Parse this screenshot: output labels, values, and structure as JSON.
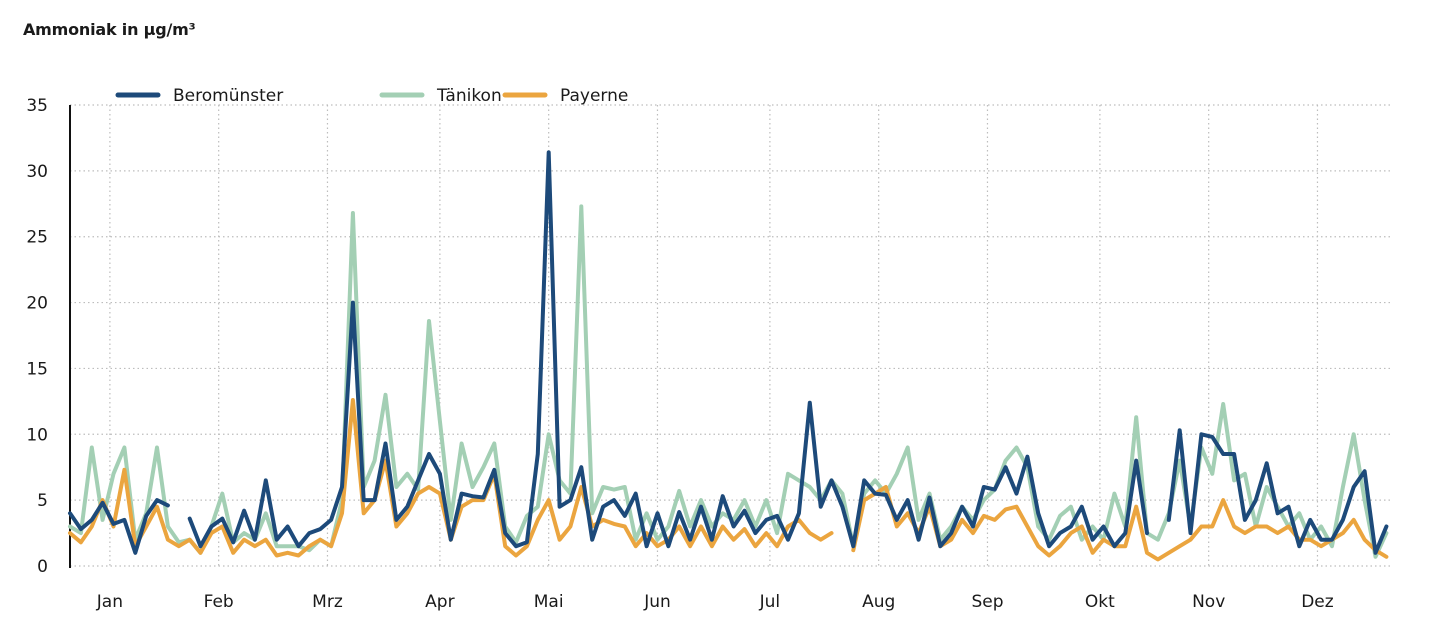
{
  "chart_data": {
    "type": "line",
    "title": "Ammoniak in µg/m³",
    "xlabel": "",
    "ylabel": "",
    "ylim": [
      0,
      35
    ],
    "yticks": [
      0,
      5,
      10,
      15,
      20,
      25,
      30,
      35
    ],
    "xlim": [
      1,
      365
    ],
    "x_unit": "day of year",
    "xticks": [
      {
        "day": 12,
        "label": "Jan"
      },
      {
        "day": 42,
        "label": "Feb"
      },
      {
        "day": 72,
        "label": "Mrz"
      },
      {
        "day": 103,
        "label": "Apr"
      },
      {
        "day": 133,
        "label": "Mai"
      },
      {
        "day": 163,
        "label": "Jun"
      },
      {
        "day": 194,
        "label": "Jul"
      },
      {
        "day": 224,
        "label": "Aug"
      },
      {
        "day": 254,
        "label": "Sep"
      },
      {
        "day": 285,
        "label": "Okt"
      },
      {
        "day": 315,
        "label": "Nov"
      },
      {
        "day": 345,
        "label": "Dez"
      }
    ],
    "grid": true,
    "legend_position": "top-left",
    "x_step_days": 3,
    "series": [
      {
        "name": "Beromünster",
        "color": "#1d4a7a",
        "values": [
          4,
          2.8,
          3.5,
          4.8,
          3.2,
          3.5,
          1,
          3.8,
          5,
          4.6,
          null,
          3.6,
          1.5,
          3,
          3.6,
          1.8,
          4.2,
          2,
          6.5,
          2,
          3,
          1.5,
          2.5,
          2.8,
          3.5,
          6,
          20,
          5,
          5,
          9.3,
          3.5,
          4.5,
          6.5,
          8.5,
          7,
          2,
          5.5,
          5.3,
          5.2,
          7.3,
          2.5,
          1.5,
          1.8,
          8.5,
          31.4,
          4.5,
          5,
          7.5,
          2,
          4.5,
          5,
          3.8,
          5.5,
          1.5,
          4,
          1.5,
          4.1,
          2,
          4.5,
          2,
          5.3,
          3,
          4.2,
          2.5,
          3.5,
          3.8,
          2,
          4,
          12.4,
          4.5,
          6.5,
          4.5,
          1.5,
          6.5,
          5.5,
          5.4,
          3.5,
          5,
          2,
          5.2,
          1.5,
          2.5,
          4.5,
          3,
          6,
          5.8,
          7.5,
          5.5,
          8.3,
          4,
          1.5,
          2.5,
          3,
          4.5,
          2,
          3,
          1.5,
          2.5,
          8,
          2.5,
          null,
          3.5,
          10.3,
          2.5,
          10,
          9.8,
          8.5,
          8.5,
          3.5,
          5,
          7.8,
          4,
          4.5,
          1.5,
          3.5,
          2,
          2,
          3.5,
          6,
          7.2,
          1,
          3
        ]
      },
      {
        "name": "Tänikon",
        "color": "#a3cfb4",
        "values": [
          3,
          2.5,
          9,
          3.5,
          7,
          9,
          2,
          4,
          9,
          3,
          1.8,
          2,
          1,
          3,
          5.5,
          1.8,
          2.5,
          2,
          4,
          1.5,
          1.5,
          1.5,
          1.2,
          2,
          1.5,
          5,
          26.8,
          6,
          8,
          13,
          6,
          7,
          5.8,
          18.6,
          11,
          3.5,
          9.3,
          6,
          7.5,
          9.3,
          3,
          1.8,
          3.8,
          4.5,
          10,
          6.5,
          5.5,
          27.3,
          4,
          6,
          5.8,
          6,
          2,
          4,
          2,
          3,
          5.7,
          3,
          5,
          3,
          4,
          3.5,
          5,
          3,
          5,
          2.5,
          7,
          6.5,
          6,
          5,
          6.5,
          5.5,
          1.5,
          5.5,
          6.5,
          5.5,
          7,
          9,
          3.5,
          5.5,
          2,
          3,
          4.5,
          3.5,
          5,
          5.8,
          8,
          9,
          7.5,
          3,
          2,
          3.8,
          4.5,
          2,
          3,
          2,
          5.5,
          3,
          11.3,
          2.5,
          2,
          4,
          8,
          3,
          9,
          7,
          12.3,
          6.5,
          7,
          3,
          6,
          4.5,
          3,
          4,
          2,
          3,
          1.5,
          6,
          10,
          5,
          0.7,
          2.5
        ]
      },
      {
        "name": "Payerne",
        "color": "#eba53f",
        "values": [
          2.5,
          1.8,
          3,
          5,
          3,
          7.3,
          1.5,
          3,
          4.5,
          2,
          1.5,
          2,
          1,
          2.5,
          3,
          1,
          2,
          1.5,
          2,
          0.8,
          1,
          0.8,
          1.5,
          2,
          1.5,
          4,
          12.6,
          4,
          5,
          8,
          3,
          4,
          5.5,
          6,
          5.5,
          2,
          4.5,
          5,
          5,
          7,
          1.5,
          0.8,
          1.5,
          3.5,
          5,
          2,
          3,
          6,
          3,
          3.5,
          3.2,
          3,
          1.5,
          2.5,
          1.5,
          2,
          3,
          1.5,
          3,
          1.5,
          3,
          2,
          2.8,
          1.5,
          2.5,
          1.5,
          3,
          3.5,
          2.5,
          2,
          2.5,
          null,
          1.2,
          5,
          5.5,
          6,
          3,
          4,
          2.5,
          4.5,
          1.5,
          2,
          3.5,
          2.5,
          3.8,
          3.5,
          4.3,
          4.5,
          3,
          1.5,
          0.8,
          1.5,
          2.5,
          3,
          1,
          2,
          1.5,
          1.5,
          4.5,
          1,
          0.5,
          1,
          1.5,
          2,
          3,
          3,
          5,
          3,
          2.5,
          3,
          3,
          2.5,
          3,
          2,
          2,
          1.5,
          2,
          2.5,
          3.5,
          2,
          1.2,
          0.7
        ]
      }
    ]
  }
}
